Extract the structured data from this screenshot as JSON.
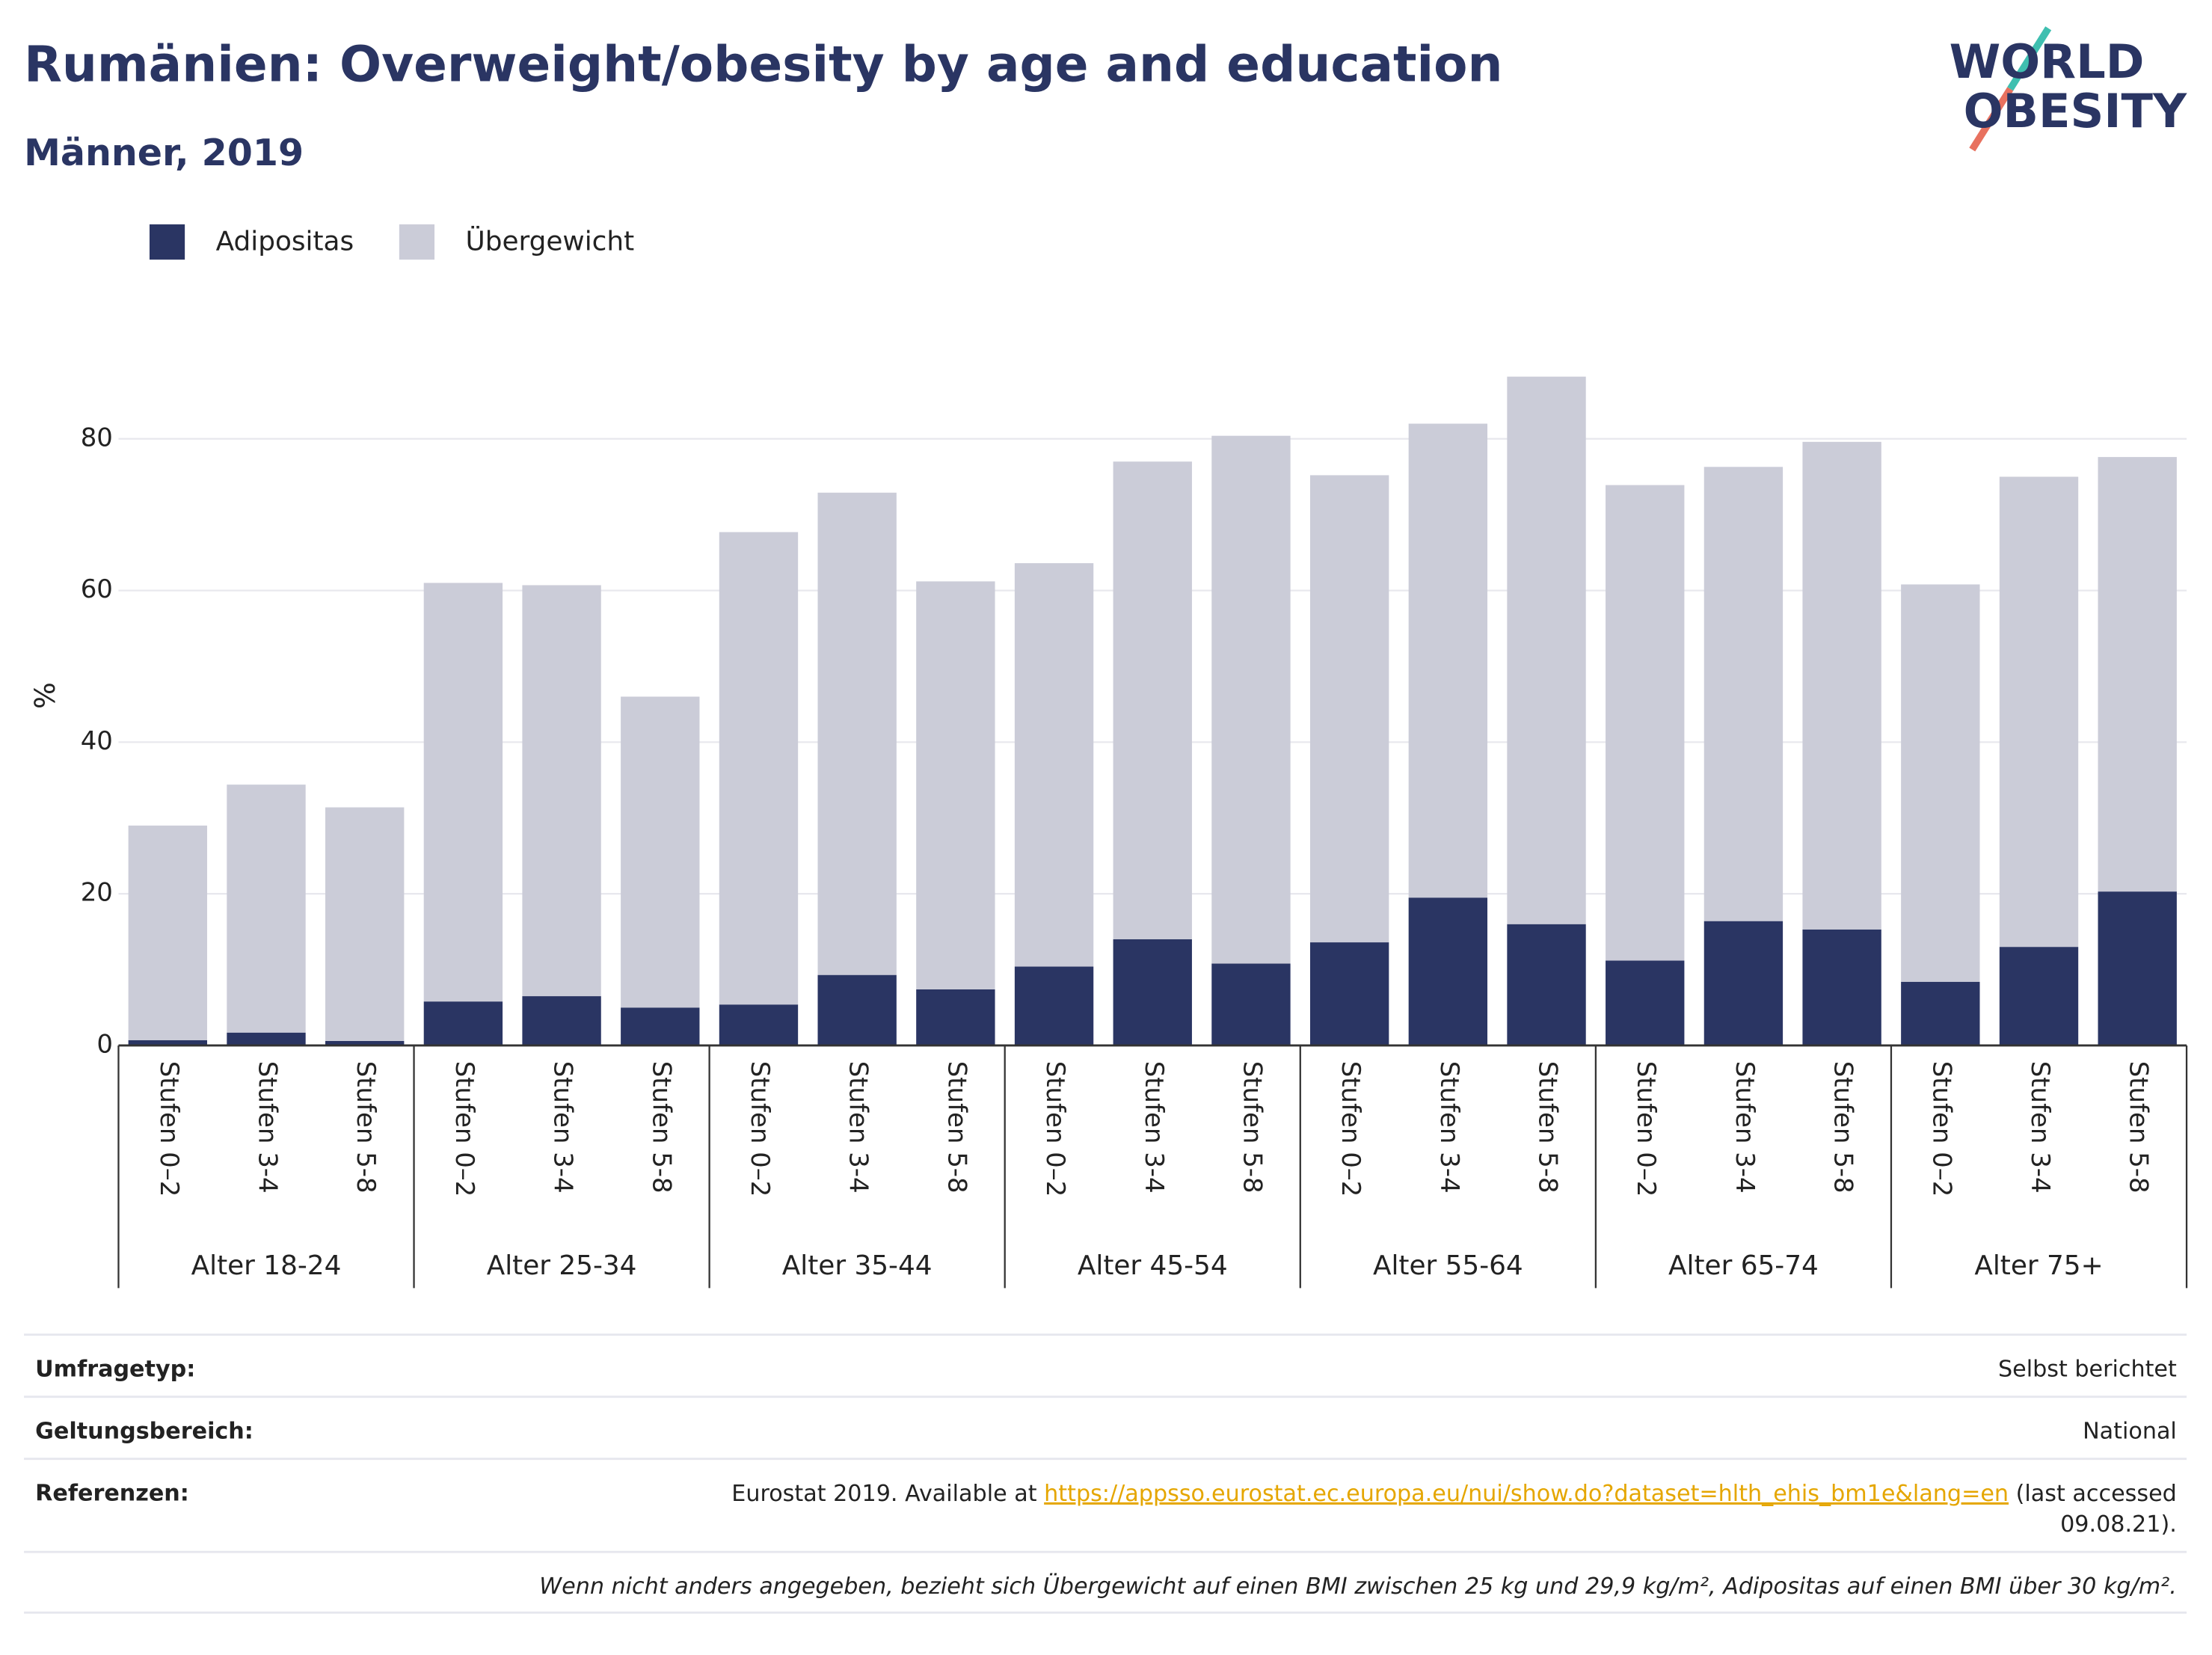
{
  "chart_data": {
    "type": "stacked_bar",
    "title": "Rumänien: Overweight/obesity by age and education",
    "subtitle": "Männer, 2019",
    "y_label": "%",
    "categories": [
      "Stufen 0–2",
      "Stufen 3-4",
      "Stufen 5-8",
      "Stufen 0–2",
      "Stufen 3-4",
      "Stufen 5-8",
      "Stufen 0–2",
      "Stufen 3-4",
      "Stufen 5-8",
      "Stufen 0–2",
      "Stufen 3-4",
      "Stufen 5-8",
      "Stufen 0–2",
      "Stufen 3-4",
      "Stufen 5-8",
      "Stufen 0–2",
      "Stufen 3-4",
      "Stufen 5-8",
      "Stufen 0–2",
      "Stufen 3-4",
      "Stufen 5-8"
    ],
    "groups": [
      "Alter 18-24",
      "Alter 25-34",
      "Alter 35-44",
      "Alter 45-54",
      "Alter 55-64",
      "Alter 65-74",
      "Alter 75+"
    ],
    "series": [
      {
        "name": "Adipositas",
        "color": "#2a3563",
        "values": [
          0.7,
          1.7,
          0.6,
          5.8,
          6.5,
          5.0,
          5.4,
          9.3,
          7.4,
          10.4,
          14.0,
          10.8,
          13.6,
          19.5,
          16.0,
          11.2,
          16.4,
          15.3,
          8.4,
          13.0,
          20.3
        ]
      },
      {
        "name": "Übergewicht",
        "color": "#cbccd8",
        "values": [
          28.3,
          32.7,
          30.8,
          55.2,
          54.2,
          41.0,
          62.3,
          63.6,
          53.8,
          53.2,
          63.0,
          69.6,
          61.6,
          62.5,
          72.2,
          62.7,
          59.9,
          64.3,
          52.4,
          62.0,
          57.3
        ]
      }
    ],
    "ylim": [
      0,
      90
    ],
    "yticks": [
      0,
      20,
      40,
      60,
      80
    ],
    "grid": true,
    "legend": "top-left"
  },
  "logo": [
    "WORLD",
    "OBESITY"
  ],
  "footer": {
    "rows": [
      {
        "label": "Umfragetyp:",
        "value": "Selbst berichtet"
      },
      {
        "label": "Geltungsbereich:",
        "value": "National"
      }
    ],
    "references": {
      "label": "Referenzen:",
      "prefix": "Eurostat 2019. Available at ",
      "url": "https://appsso.eurostat.ec.europa.eu/nui/show.do?dataset=hlth_ehis_bm1e&lang=en",
      "suffix": " (last accessed",
      "suffix_line2": "09.08.21)."
    },
    "note": "Wenn nicht anders angegeben, bezieht sich Übergewicht auf einen BMI zwischen 25 kg und 29,9 kg/m², Adipositas auf einen BMI über 30 kg/m²."
  }
}
